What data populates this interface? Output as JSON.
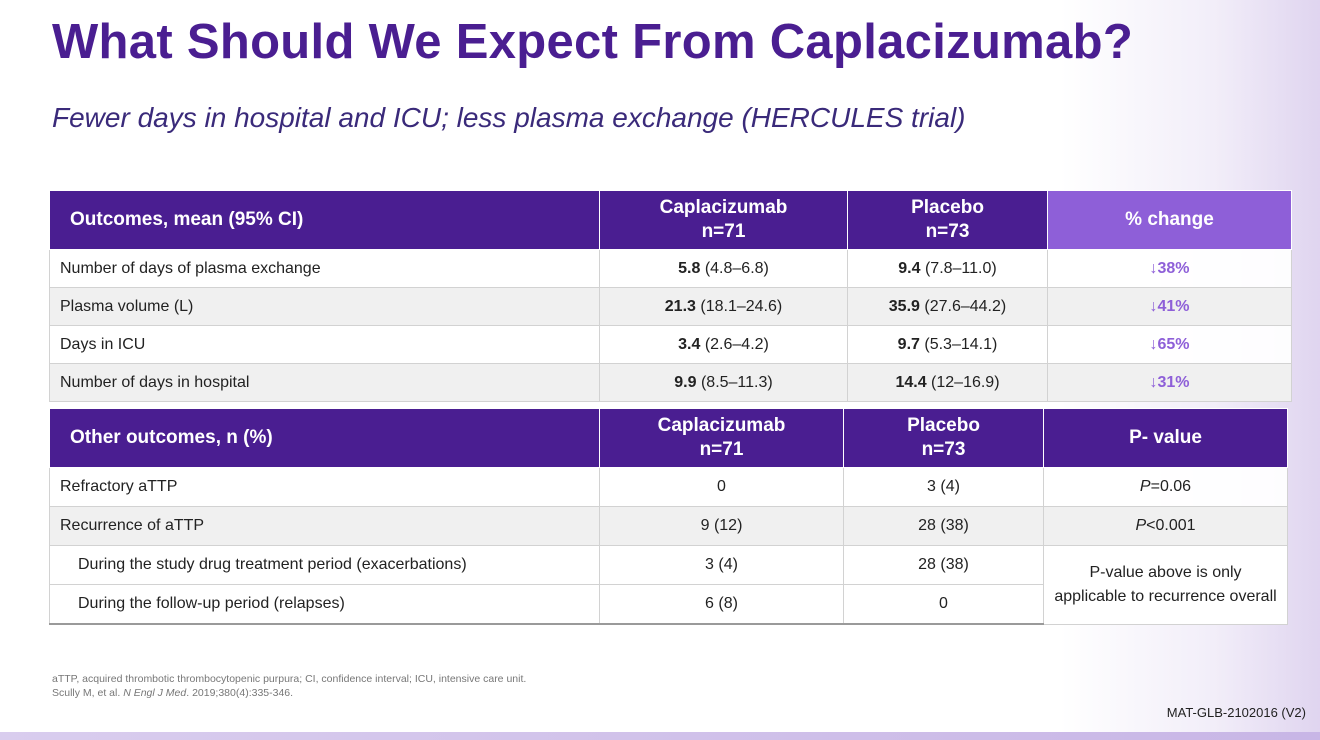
{
  "slide": {
    "title": "What Should We Expect From Caplacizumab?",
    "subtitle": "Fewer days in hospital and ICU; less plasma exchange (HERCULES trial)"
  },
  "table1": {
    "headers": {
      "outcome": "Outcomes, mean (95% CI)",
      "cap_name": "Caplacizumab",
      "cap_n": "n=71",
      "pla_name": "Placebo",
      "pla_n": "n=73",
      "change": "% change"
    },
    "rows": [
      {
        "label": "Number of days  of plasma exchange",
        "cap_val": "5.8",
        "cap_ci": " (4.8–6.8)",
        "pla_val": "9.4",
        "pla_ci": " (7.8–11.0)",
        "change": "↓38%"
      },
      {
        "label": "Plasma volume (L)",
        "cap_val": "21.3",
        "cap_ci": " (18.1–24.6)",
        "pla_val": "35.9",
        "pla_ci": " (27.6–44.2)",
        "change": "↓41%"
      },
      {
        "label": "Days in ICU",
        "cap_val": "3.4",
        "cap_ci": " (2.6–4.2)",
        "pla_val": "9.7",
        "pla_ci": " (5.3–14.1)",
        "change": "↓65%"
      },
      {
        "label": "Number of days in hospital",
        "cap_val": "9.9",
        "cap_ci": " (8.5–11.3)",
        "pla_val": "14.4",
        "pla_ci": " (12–16.9)",
        "change": "↓31%"
      }
    ]
  },
  "table2": {
    "headers": {
      "outcome": "Other outcomes, n (%)",
      "cap_name": "Caplacizumab",
      "cap_n": "n=71",
      "pla_name": "Placebo",
      "pla_n": "n=73",
      "pvalue": "P- value"
    },
    "rows": [
      {
        "label": "Refractory aTTP",
        "cap": "0",
        "pla": "3 (4)",
        "p_italic": "P",
        "p_rest": "=0.06"
      },
      {
        "label": "Recurrence of aTTP",
        "cap": "9 (12)",
        "pla": "28 (38)",
        "p_italic": "P",
        "p_rest": "<0.001"
      },
      {
        "label": "During the study drug treatment period (exacerbations)",
        "cap": "3 (4)",
        "pla": "28 (38)"
      },
      {
        "label": "During the follow-up period (relapses)",
        "cap": "6 (8)",
        "pla": "0"
      }
    ],
    "note": "P-value above is only applicable to recurrence overall"
  },
  "footnote": {
    "line1": "aTTP, acquired thrombotic thrombocytopenic purpura; CI, confidence interval; ICU, intensive care unit.",
    "ref_authors": "Scully M, et al. ",
    "ref_journal": "N Engl J Med",
    "ref_rest": ". 2019;380(4):335-346."
  },
  "doc_code": "MAT-GLB-2102016 (V2)",
  "colors": {
    "purple": "#4a1e91",
    "accent": "#8e5fd8"
  }
}
